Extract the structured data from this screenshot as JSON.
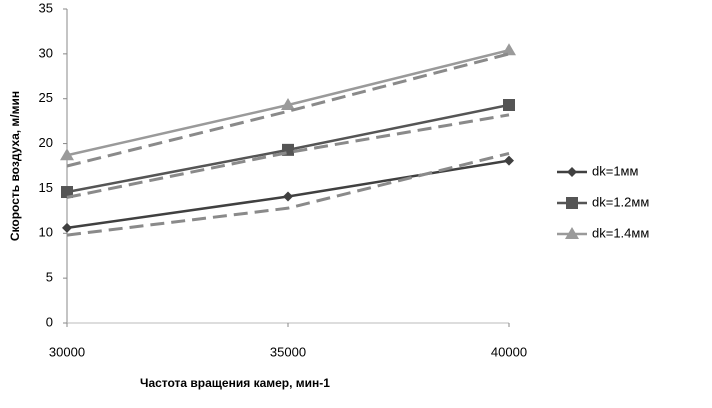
{
  "chart_data": {
    "type": "line",
    "x_label": "Частота вращения камер, мин-1",
    "y_label": "Скорость воздуха, м/мин",
    "x": [
      30000,
      35000,
      40000
    ],
    "xlim": [
      30000,
      40000
    ],
    "xticks": [
      30000,
      35000,
      40000
    ],
    "ylim": [
      0,
      35
    ],
    "yticks": [
      0,
      5,
      10,
      15,
      20,
      25,
      30,
      35
    ],
    "grid": false,
    "legend": "right",
    "series": [
      {
        "name": "dk=1мм",
        "color": "#404040",
        "marker": "diamond",
        "dashed": false,
        "values": [
          10.6,
          14.1,
          18.1
        ]
      },
      {
        "name": "dk=1.2мм",
        "color": "#555555",
        "marker": "square",
        "dashed": false,
        "values": [
          14.6,
          19.3,
          24.3
        ]
      },
      {
        "name": "dk=1.4мм",
        "color": "#9a9a9a",
        "marker": "triangle",
        "dashed": false,
        "values": [
          18.7,
          24.3,
          30.4
        ]
      },
      {
        "color": "#8a8a8a",
        "dashed": true,
        "values": [
          9.8,
          12.8,
          18.9
        ]
      },
      {
        "color": "#8a8a8a",
        "dashed": true,
        "values": [
          14.0,
          19.0,
          23.2
        ]
      },
      {
        "color": "#8a8a8a",
        "dashed": true,
        "values": [
          17.5,
          23.6,
          30.0
        ]
      }
    ]
  }
}
